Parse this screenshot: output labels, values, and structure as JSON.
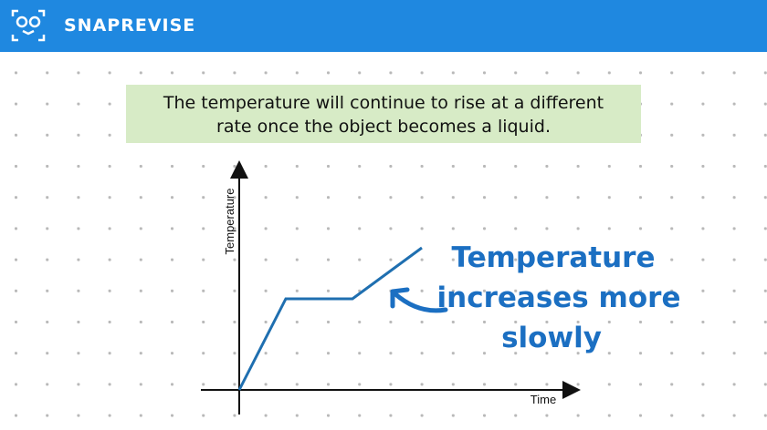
{
  "header": {
    "brand": "SNAPREVISE"
  },
  "caption": {
    "lines": [
      "The temperature will continue to rise at a different",
      "rate once the object becomes a liquid."
    ]
  },
  "graph": {
    "y_label": "Temperature",
    "x_label": "Time"
  },
  "annotation": {
    "lines": [
      "Temperature",
      "increases more",
      "slowly"
    ]
  }
}
